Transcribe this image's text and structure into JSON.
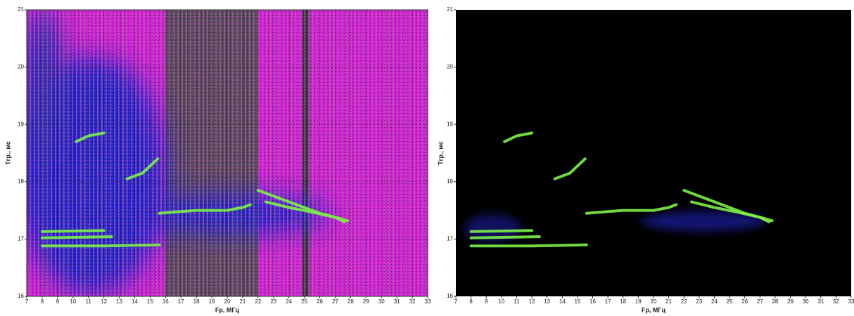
{
  "chart_data": [
    {
      "type": "line",
      "x_label": "Fр, МГц",
      "y_label": "Тгр., мс",
      "xlim": [
        7,
        33
      ],
      "ylim": [
        16,
        21
      ],
      "xticks": [
        7,
        8,
        9,
        10,
        11,
        12,
        13,
        14,
        15,
        16,
        17,
        18,
        19,
        20,
        21,
        22,
        23,
        24,
        25,
        26,
        27,
        28,
        29,
        30,
        31,
        32,
        33
      ],
      "yticks": [
        16,
        17,
        18,
        19,
        20,
        21
      ],
      "grid": true,
      "series": [
        {
          "color": "#7cf048",
          "x": [
            8,
            10,
            12,
            14,
            15.6
          ],
          "values": [
            16.88,
            16.88,
            16.88,
            16.89,
            16.9
          ]
        },
        {
          "color": "#7cf048",
          "x": [
            8,
            10,
            12.5
          ],
          "values": [
            17.02,
            17.03,
            17.04
          ]
        },
        {
          "color": "#7cf048",
          "x": [
            8,
            10,
            12
          ],
          "values": [
            17.13,
            17.14,
            17.15
          ]
        },
        {
          "color": "#7cf048",
          "x": [
            15.6,
            17,
            18,
            19,
            20,
            21,
            21.5
          ],
          "values": [
            17.45,
            17.48,
            17.5,
            17.5,
            17.5,
            17.55,
            17.6
          ]
        },
        {
          "color": "#7cf048",
          "x": [
            22,
            23,
            24,
            25,
            26,
            27,
            27.8
          ],
          "values": [
            17.85,
            17.75,
            17.65,
            17.55,
            17.45,
            17.38,
            17.32
          ]
        },
        {
          "color": "#7cf048",
          "x": [
            22.5,
            24,
            25.5,
            27,
            27.6
          ],
          "values": [
            17.65,
            17.55,
            17.47,
            17.38,
            17.3
          ]
        },
        {
          "color": "#7cf048",
          "x": [
            10.2,
            11,
            12
          ],
          "values": [
            18.7,
            18.8,
            18.85
          ]
        },
        {
          "color": "#7cf048",
          "x": [
            13.5,
            14.5,
            15.5
          ],
          "values": [
            18.05,
            18.15,
            18.4
          ]
        }
      ]
    },
    {
      "type": "line",
      "x_label": "Fр, МГц",
      "y_label": "Тгр., мс",
      "xlim": [
        7,
        33
      ],
      "ylim": [
        16,
        21
      ],
      "xticks": [
        7,
        8,
        9,
        10,
        11,
        12,
        13,
        14,
        15,
        16,
        17,
        18,
        19,
        20,
        21,
        22,
        23,
        24,
        25,
        26,
        27,
        28,
        29,
        30,
        31,
        32,
        33
      ],
      "yticks": [
        16,
        17,
        18,
        19,
        20,
        21
      ],
      "grid": false,
      "series": [
        {
          "color": "#7cf048",
          "x": [
            8,
            10,
            12,
            14,
            15.6
          ],
          "values": [
            16.88,
            16.88,
            16.88,
            16.89,
            16.9
          ]
        },
        {
          "color": "#7cf048",
          "x": [
            8,
            10,
            12.5
          ],
          "values": [
            17.02,
            17.03,
            17.04
          ]
        },
        {
          "color": "#7cf048",
          "x": [
            8,
            10,
            12
          ],
          "values": [
            17.13,
            17.14,
            17.15
          ]
        },
        {
          "color": "#7cf048",
          "x": [
            15.6,
            17,
            18,
            19,
            20,
            21,
            21.5
          ],
          "values": [
            17.45,
            17.48,
            17.5,
            17.5,
            17.5,
            17.55,
            17.6
          ]
        },
        {
          "color": "#7cf048",
          "x": [
            22,
            23,
            24,
            25,
            26,
            27,
            27.8
          ],
          "values": [
            17.85,
            17.75,
            17.65,
            17.55,
            17.45,
            17.38,
            17.32
          ]
        },
        {
          "color": "#7cf048",
          "x": [
            22.5,
            24,
            25.5,
            27,
            27.6
          ],
          "values": [
            17.65,
            17.55,
            17.47,
            17.38,
            17.3
          ]
        },
        {
          "color": "#7cf048",
          "x": [
            10.2,
            11,
            12
          ],
          "values": [
            18.7,
            18.8,
            18.85
          ]
        },
        {
          "color": "#7cf048",
          "x": [
            13.5,
            14.5,
            15.5
          ],
          "values": [
            18.05,
            18.15,
            18.4
          ]
        }
      ]
    }
  ]
}
